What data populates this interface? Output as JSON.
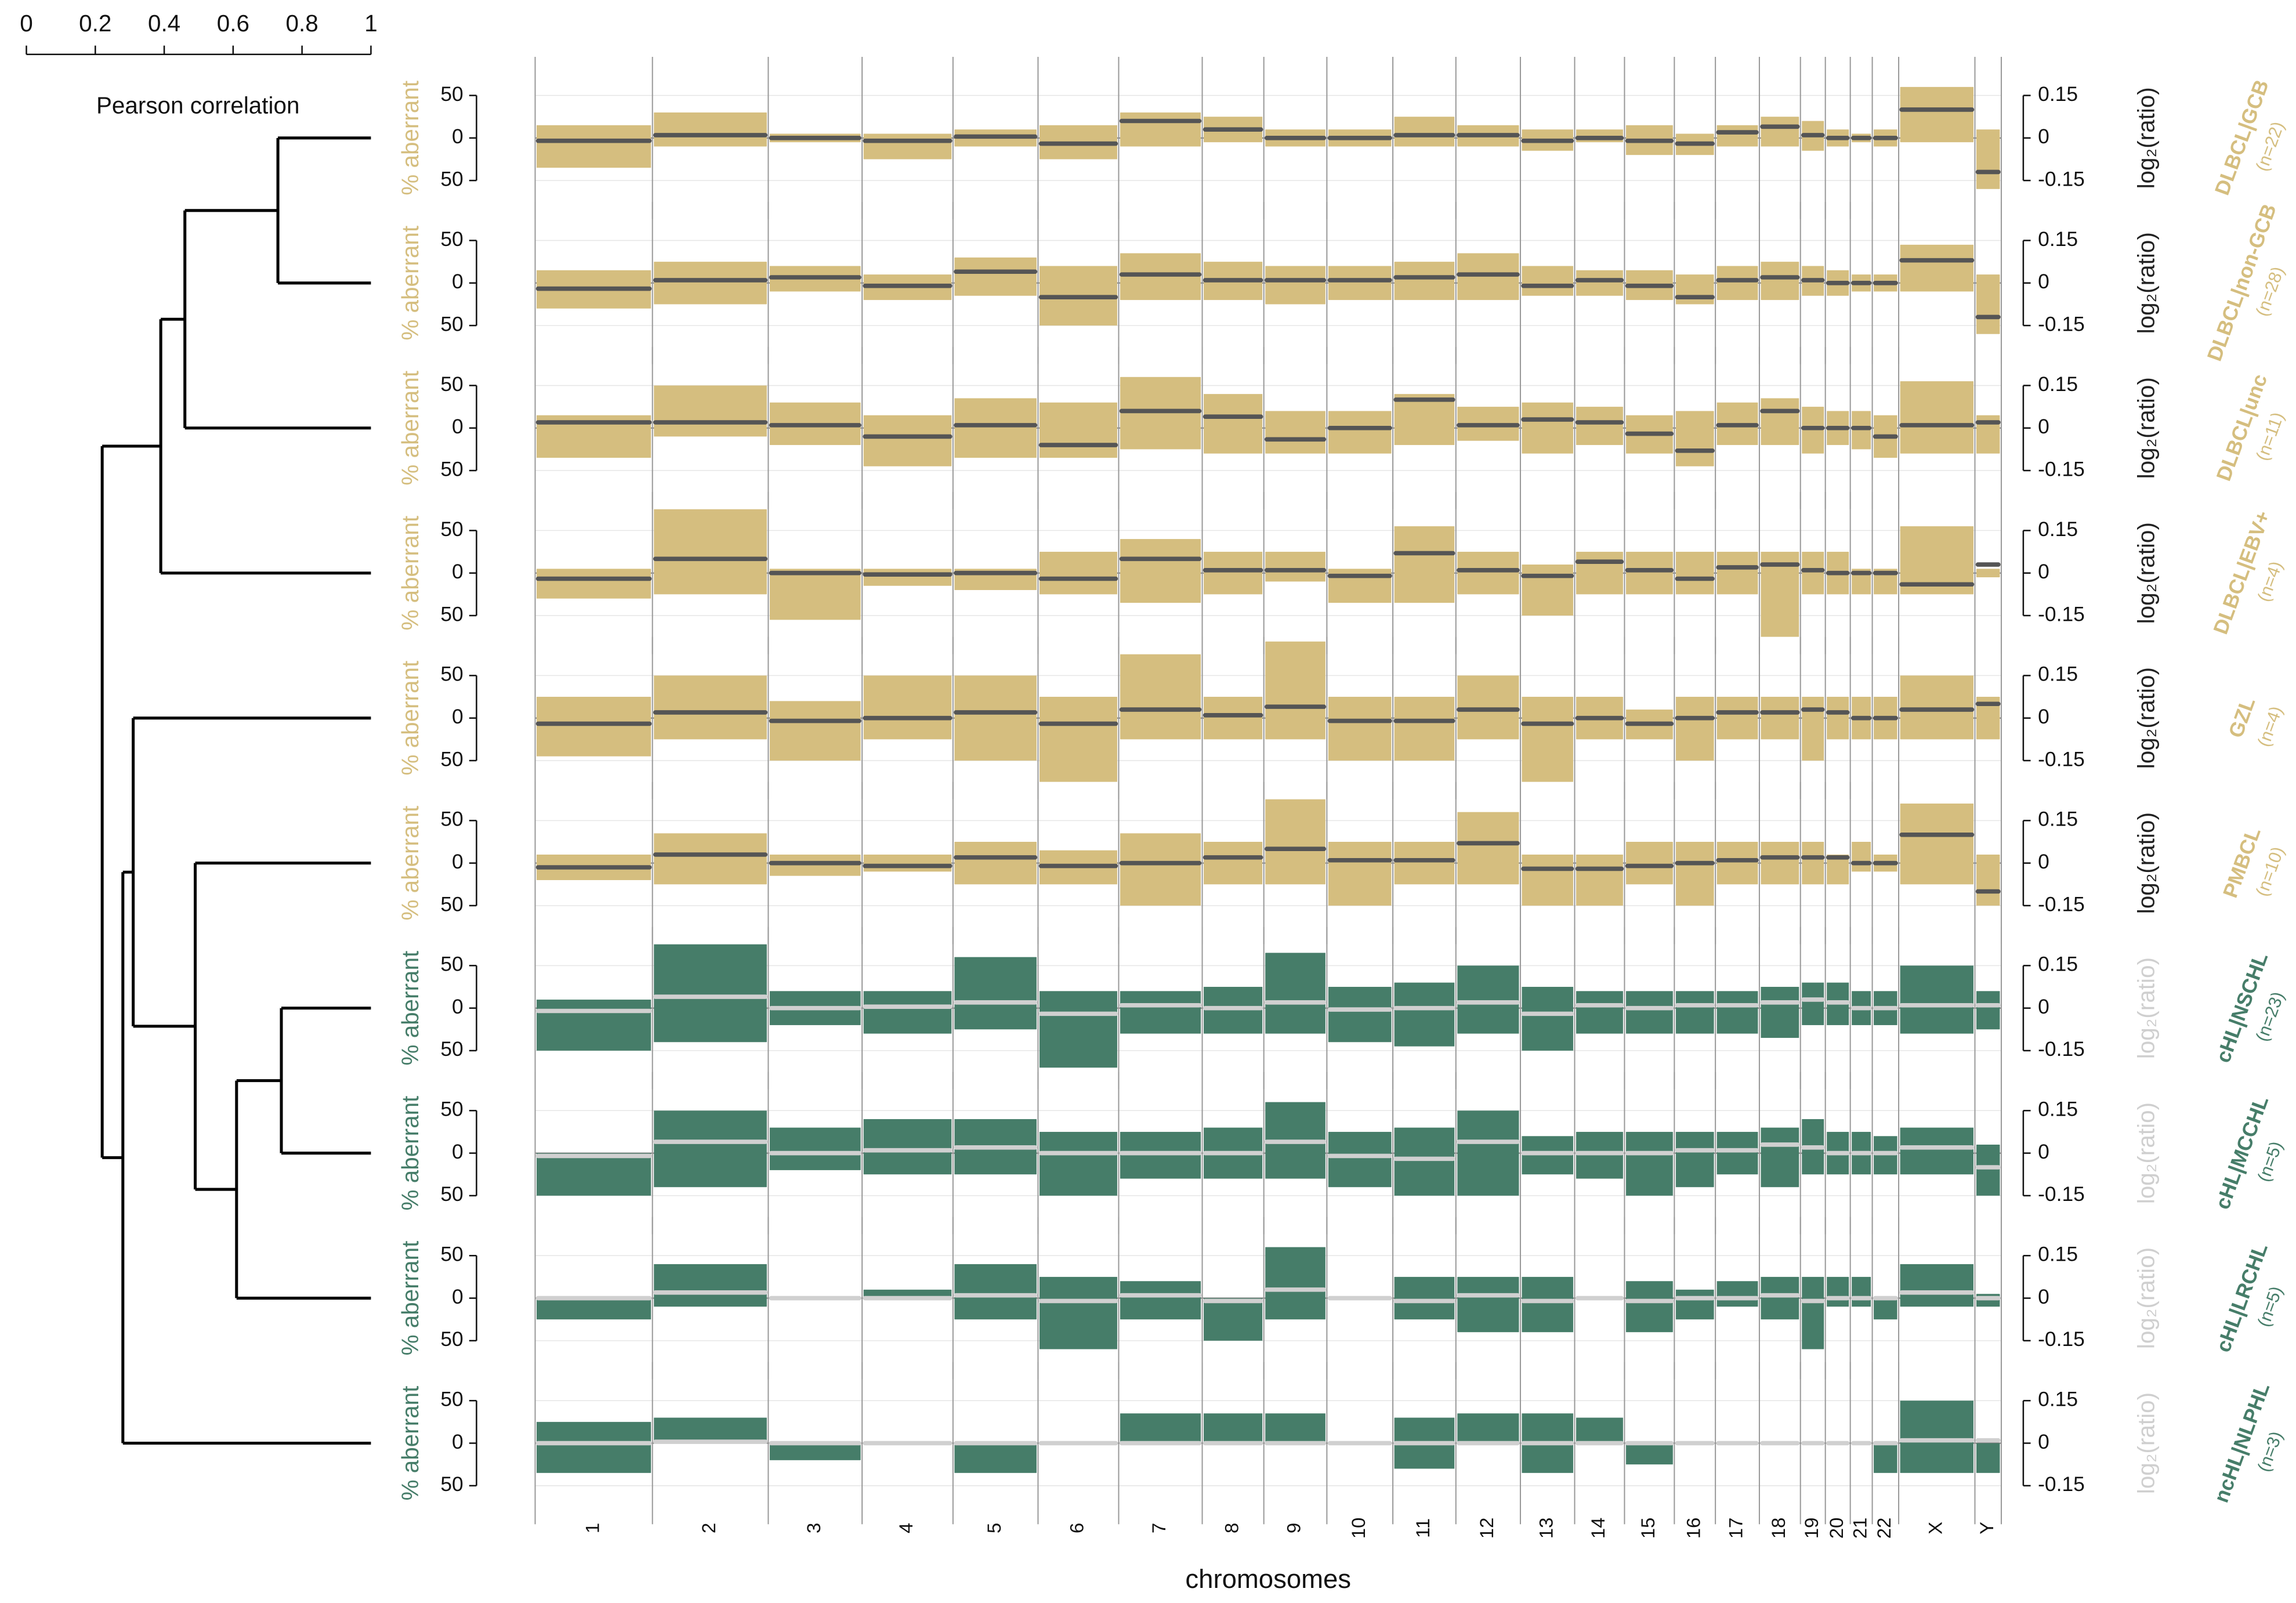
{
  "chart_data": [
    {
      "type": "dendrogram",
      "xlabel": "Pearson correlation",
      "xlim": [
        0,
        1
      ],
      "xticks": [
        0,
        0.2,
        0.4,
        0.6,
        0.8,
        1
      ],
      "tree": {
        "height": 0.22,
        "children": [
          {
            "height": 0.39,
            "children": [
              {
                "height": 0.46,
                "children": [
                  {
                    "height": 0.73,
                    "children": [
                      0,
                      1
                    ]
                  },
                  2
                ]
              },
              3
            ]
          },
          {
            "height": 0.28,
            "children": [
              {
                "height": 0.31,
                "children": [
                  4,
                  {
                    "height": 0.49,
                    "children": [
                      5,
                      {
                        "height": 0.61,
                        "children": [
                          {
                            "height": 0.74,
                            "children": [
                              6,
                              7
                            ]
                          },
                          8
                        ]
                      }
                    ]
                  }
                ]
              },
              9
            ]
          }
        ]
      }
    },
    {
      "type": "band",
      "title": "DLBCL|GCB",
      "subtitle": "(n=22)",
      "color": "#d5be7f",
      "line_color": "#555555",
      "ylabel": "% aberrant",
      "ylim": [
        -85,
        85
      ],
      "yticks": [
        50,
        0,
        {
          "value": -50,
          "label": "50"
        }
      ],
      "y2label": "log₂(ratio)",
      "y2lim": [
        -0.255,
        0.255
      ],
      "y2ticks": [
        0.15,
        0,
        -0.15
      ],
      "gain": [
        15,
        30,
        5,
        5,
        10,
        15,
        30,
        25,
        10,
        10,
        25,
        15,
        10,
        10,
        15,
        5,
        15,
        25,
        20,
        10,
        5,
        10,
        60,
        10
      ],
      "loss": [
        -35,
        -10,
        -5,
        -25,
        -10,
        -25,
        -10,
        -5,
        -10,
        -10,
        -10,
        -10,
        -15,
        -5,
        -20,
        -20,
        -10,
        -10,
        -15,
        -10,
        -5,
        -10,
        -5,
        -60
      ],
      "log2ratio": [
        -0.01,
        0.01,
        0,
        -0.01,
        0.005,
        -0.02,
        0.06,
        0.03,
        0,
        0,
        0.01,
        0.01,
        -0.01,
        0,
        -0.01,
        -0.02,
        0.02,
        0.04,
        0.01,
        0,
        0,
        0,
        0.1,
        -0.12
      ]
    },
    {
      "type": "band",
      "title": "DLBCL|non-GCB",
      "subtitle": "(n=28)",
      "color": "#d5be7f",
      "line_color": "#555555",
      "ylabel": "% aberrant",
      "ylim": [
        -85,
        85
      ],
      "yticks": [
        50,
        0,
        {
          "value": -50,
          "label": "50"
        }
      ],
      "y2label": "log₂(ratio)",
      "y2lim": [
        -0.255,
        0.255
      ],
      "y2ticks": [
        0.15,
        0,
        -0.15
      ],
      "gain": [
        15,
        25,
        20,
        10,
        30,
        20,
        35,
        25,
        20,
        20,
        25,
        35,
        20,
        15,
        15,
        10,
        20,
        25,
        20,
        15,
        10,
        10,
        45,
        10
      ],
      "loss": [
        -30,
        -25,
        -10,
        -20,
        -15,
        -50,
        -20,
        -20,
        -25,
        -20,
        -20,
        -20,
        -15,
        -15,
        -20,
        -25,
        -20,
        -20,
        -15,
        -15,
        -10,
        -10,
        -10,
        -60
      ],
      "log2ratio": [
        -0.02,
        0.01,
        0.02,
        -0.01,
        0.04,
        -0.05,
        0.03,
        0.01,
        0.01,
        0.01,
        0.02,
        0.03,
        -0.01,
        0.01,
        -0.01,
        -0.05,
        0.01,
        0.02,
        0.01,
        0,
        0,
        0,
        0.08,
        -0.12
      ]
    },
    {
      "type": "band",
      "title": "DLBCL|unc",
      "subtitle": "(n=11)",
      "color": "#d5be7f",
      "line_color": "#555555",
      "ylabel": "% aberrant",
      "ylim": [
        -85,
        85
      ],
      "yticks": [
        50,
        0,
        {
          "value": -50,
          "label": "50"
        }
      ],
      "y2label": "log₂(ratio)",
      "y2lim": [
        -0.255,
        0.255
      ],
      "y2ticks": [
        0.15,
        0,
        -0.15
      ],
      "gain": [
        15,
        50,
        30,
        15,
        35,
        30,
        60,
        40,
        20,
        20,
        40,
        25,
        30,
        25,
        15,
        20,
        30,
        35,
        25,
        20,
        20,
        15,
        55,
        15
      ],
      "loss": [
        -35,
        -10,
        -20,
        -45,
        -35,
        -35,
        -25,
        -30,
        -30,
        -30,
        -20,
        -15,
        -30,
        -20,
        -30,
        -45,
        -20,
        -20,
        -30,
        -20,
        -25,
        -35,
        -30,
        -30
      ],
      "log2ratio": [
        0.02,
        0.02,
        0.01,
        -0.03,
        0.01,
        -0.06,
        0.06,
        0.04,
        -0.04,
        0,
        0.1,
        0.01,
        0.03,
        0.02,
        -0.02,
        -0.08,
        0.01,
        0.06,
        0,
        0,
        0,
        -0.03,
        0.01,
        0.02
      ]
    },
    {
      "type": "band",
      "title": "DLBCL|EBV+",
      "subtitle": "(n=4)",
      "color": "#d5be7f",
      "line_color": "#555555",
      "ylabel": "% aberrant",
      "ylim": [
        -85,
        85
      ],
      "yticks": [
        50,
        0,
        {
          "value": -50,
          "label": "50"
        }
      ],
      "y2label": "log₂(ratio)",
      "y2lim": [
        -0.255,
        0.255
      ],
      "y2ticks": [
        0.15,
        0,
        -0.15
      ],
      "gain": [
        5,
        75,
        5,
        5,
        5,
        25,
        40,
        25,
        25,
        5,
        55,
        25,
        10,
        25,
        25,
        25,
        25,
        25,
        25,
        25,
        5,
        5,
        55,
        5
      ],
      "loss": [
        -30,
        -25,
        -55,
        -15,
        -20,
        -25,
        -35,
        -25,
        -10,
        -35,
        -35,
        -25,
        -50,
        -25,
        -25,
        -25,
        -25,
        -75,
        -25,
        -25,
        -25,
        -25,
        -25,
        -5
      ],
      "log2ratio": [
        -0.02,
        0.05,
        0,
        -0.005,
        0,
        -0.02,
        0.05,
        0.01,
        0.01,
        -0.01,
        0.07,
        0.01,
        -0.01,
        0.04,
        0.01,
        -0.02,
        0.02,
        0.03,
        0.01,
        0,
        0,
        0,
        -0.04,
        0.03
      ]
    },
    {
      "type": "band",
      "title": "GZL",
      "subtitle": "(n=4)",
      "color": "#d5be7f",
      "line_color": "#555555",
      "ylabel": "% aberrant",
      "ylim": [
        -85,
        85
      ],
      "yticks": [
        50,
        0,
        {
          "value": -50,
          "label": "50"
        }
      ],
      "y2label": "log₂(ratio)",
      "y2lim": [
        -0.255,
        0.255
      ],
      "y2ticks": [
        0.15,
        0,
        -0.15
      ],
      "gain": [
        25,
        50,
        20,
        50,
        50,
        25,
        75,
        25,
        90,
        25,
        25,
        50,
        25,
        25,
        10,
        25,
        25,
        25,
        25,
        25,
        25,
        25,
        50,
        25
      ],
      "loss": [
        -45,
        -25,
        -50,
        -25,
        -50,
        -75,
        -25,
        -25,
        -25,
        -50,
        -50,
        -25,
        -75,
        -25,
        -25,
        -50,
        -25,
        -25,
        -50,
        -25,
        -25,
        -25,
        -25,
        -25
      ],
      "log2ratio": [
        -0.02,
        0.02,
        -0.01,
        0,
        0.02,
        -0.02,
        0.03,
        0.01,
        0.04,
        -0.01,
        -0.01,
        0.03,
        -0.02,
        0,
        -0.02,
        0,
        0.02,
        0.02,
        0.03,
        0.02,
        0,
        0,
        0.03,
        0.05
      ]
    },
    {
      "type": "band",
      "title": "PMBCL",
      "subtitle": "(n=10)",
      "color": "#d5be7f",
      "line_color": "#555555",
      "ylabel": "% aberrant",
      "ylim": [
        -85,
        85
      ],
      "yticks": [
        50,
        0,
        {
          "value": -50,
          "label": "50"
        }
      ],
      "y2label": "log₂(ratio)",
      "y2lim": [
        -0.255,
        0.255
      ],
      "y2ticks": [
        0.15,
        0,
        -0.15
      ],
      "gain": [
        10,
        35,
        10,
        10,
        25,
        15,
        35,
        25,
        75,
        25,
        25,
        60,
        10,
        10,
        25,
        25,
        25,
        25,
        25,
        10,
        25,
        10,
        70,
        10
      ],
      "loss": [
        -20,
        -25,
        -15,
        -10,
        -25,
        -25,
        -50,
        -25,
        -25,
        -50,
        -25,
        -25,
        -50,
        -50,
        -25,
        -50,
        -25,
        -25,
        -25,
        -25,
        -10,
        -10,
        -25,
        -50
      ],
      "log2ratio": [
        -0.015,
        0.03,
        0,
        -0.01,
        0.02,
        -0.01,
        0,
        0.02,
        0.05,
        0.01,
        0.01,
        0.07,
        -0.02,
        -0.02,
        -0.01,
        0,
        0.01,
        0.02,
        0.02,
        0.02,
        0,
        0,
        0.1,
        -0.1
      ]
    },
    {
      "type": "band",
      "title": "cHL|NSCHL",
      "subtitle": "(n=23)",
      "color": "#467d69",
      "line_color": "#d0d0d0",
      "ylabel": "% aberrant",
      "ylim": [
        -85,
        85
      ],
      "yticks": [
        50,
        0,
        {
          "value": -50,
          "label": "50"
        }
      ],
      "y2label": "log₂(ratio)",
      "y2lim": [
        -0.255,
        0.255
      ],
      "y2ticks": [
        0.15,
        0,
        -0.15
      ],
      "gain": [
        10,
        75,
        20,
        20,
        60,
        20,
        20,
        25,
        65,
        25,
        30,
        50,
        25,
        20,
        20,
        20,
        20,
        25,
        30,
        30,
        20,
        20,
        50,
        20
      ],
      "loss": [
        -50,
        -40,
        -20,
        -30,
        -25,
        -70,
        -30,
        -30,
        -30,
        -40,
        -45,
        -30,
        -50,
        -30,
        -30,
        -30,
        -30,
        -35,
        -20,
        -20,
        -20,
        -20,
        -30,
        -25
      ],
      "log2ratio": [
        -0.01,
        0.04,
        0,
        0.005,
        0.02,
        -0.02,
        0.01,
        0,
        0.02,
        -0.005,
        0,
        0.02,
        -0.02,
        0.01,
        0,
        0.01,
        0.01,
        0.02,
        0.03,
        0.02,
        0,
        0,
        0.01,
        0.01
      ]
    },
    {
      "type": "band",
      "title": "cHL|MCCHL",
      "subtitle": "(n=5)",
      "color": "#467d69",
      "line_color": "#d0d0d0",
      "ylabel": "% aberrant",
      "ylim": [
        -85,
        85
      ],
      "yticks": [
        50,
        0,
        {
          "value": -50,
          "label": "50"
        }
      ],
      "y2label": "log₂(ratio)",
      "y2lim": [
        -0.255,
        0.255
      ],
      "y2ticks": [
        0.15,
        0,
        -0.15
      ],
      "gain": [
        0,
        50,
        30,
        40,
        40,
        25,
        25,
        30,
        60,
        25,
        30,
        50,
        20,
        25,
        25,
        25,
        25,
        30,
        40,
        25,
        25,
        20,
        30,
        10
      ],
      "loss": [
        -50,
        -40,
        -20,
        -25,
        -25,
        -50,
        -30,
        -30,
        -30,
        -40,
        -50,
        -50,
        -25,
        -30,
        -50,
        -40,
        -25,
        -40,
        -25,
        -25,
        -25,
        -25,
        -25,
        -50
      ],
      "log2ratio": [
        -0.01,
        0.04,
        0,
        0.01,
        0.02,
        0,
        0,
        0,
        0.04,
        -0.01,
        -0.02,
        0.04,
        0,
        0,
        0,
        0.01,
        0.01,
        0.03,
        0.02,
        0,
        0,
        0,
        0.02,
        -0.05
      ]
    },
    {
      "type": "band",
      "title": "cHL|LRCHL",
      "subtitle": "(n=5)",
      "color": "#467d69",
      "line_color": "#d0d0d0",
      "ylabel": "% aberrant",
      "ylim": [
        -85,
        85
      ],
      "yticks": [
        50,
        0,
        {
          "value": -50,
          "label": "50"
        }
      ],
      "y2label": "log₂(ratio)",
      "y2lim": [
        -0.255,
        0.255
      ],
      "y2ticks": [
        0.15,
        0,
        -0.15
      ],
      "gain": [
        0,
        40,
        0,
        10,
        40,
        25,
        20,
        0,
        60,
        0,
        25,
        25,
        25,
        0,
        20,
        10,
        20,
        25,
        25,
        25,
        25,
        0,
        40,
        5
      ],
      "loss": [
        -25,
        -10,
        0,
        0,
        -25,
        -60,
        -25,
        -50,
        -25,
        0,
        -25,
        -40,
        -40,
        0,
        -40,
        -25,
        -10,
        -25,
        -60,
        -10,
        -10,
        -25,
        -10,
        -10
      ],
      "log2ratio": [
        0,
        0.02,
        0,
        0,
        0.01,
        -0.01,
        0.01,
        -0.01,
        0.03,
        0,
        -0.01,
        0.01,
        -0.01,
        0,
        -0.01,
        0,
        0,
        0.01,
        -0.01,
        0,
        0,
        0,
        0.02,
        0
      ]
    },
    {
      "type": "band",
      "title": "ncHL|NLPHL",
      "subtitle": "(n=3)",
      "color": "#467d69",
      "line_color": "#d0d0d0",
      "ylabel": "% aberrant",
      "ylim": [
        -85,
        85
      ],
      "yticks": [
        50,
        0,
        {
          "value": -50,
          "label": "50"
        }
      ],
      "y2label": "log₂(ratio)",
      "y2lim": [
        -0.255,
        0.255
      ],
      "y2ticks": [
        0.15,
        0,
        -0.15
      ],
      "gain": [
        25,
        30,
        0,
        0,
        0,
        0,
        35,
        35,
        35,
        0,
        30,
        35,
        35,
        30,
        0,
        0,
        0,
        0,
        0,
        0,
        0,
        0,
        50,
        0
      ],
      "loss": [
        -35,
        0,
        -20,
        0,
        -35,
        0,
        0,
        0,
        0,
        0,
        -30,
        0,
        -35,
        0,
        -25,
        0,
        0,
        0,
        0,
        0,
        0,
        -35,
        -35,
        -35
      ],
      "log2ratio": [
        0,
        0.005,
        0,
        0,
        0,
        0,
        0,
        0,
        0,
        0,
        0,
        0,
        0,
        0,
        0,
        0,
        0,
        0,
        0,
        0,
        0,
        0,
        0.01,
        0.01
      ],
      "xlabel": "chromosomes",
      "categories": [
        "1",
        "2",
        "3",
        "4",
        "5",
        "6",
        "7",
        "8",
        "9",
        "10",
        "11",
        "12",
        "13",
        "14",
        "15",
        "16",
        "17",
        "18",
        "19",
        "20",
        "21",
        "22",
        "X",
        "Y"
      ]
    }
  ]
}
